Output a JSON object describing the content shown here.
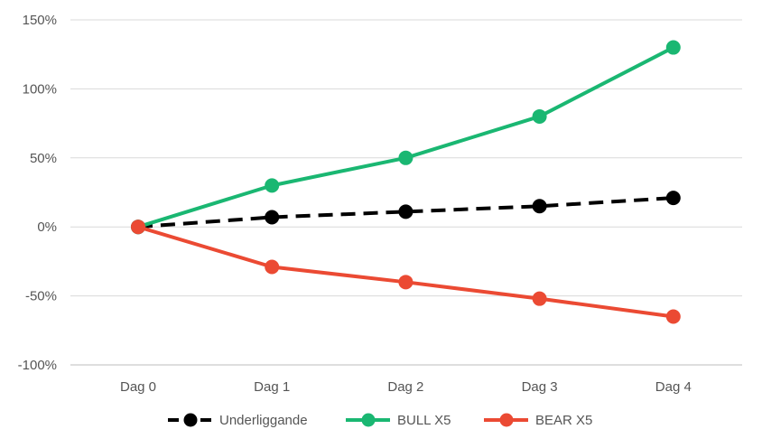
{
  "chart_data": {
    "type": "line",
    "title": "",
    "xlabel": "",
    "ylabel": "",
    "categories": [
      "Dag 0",
      "Dag 1",
      "Dag 2",
      "Dag 3",
      "Dag 4"
    ],
    "y_ticks": [
      "150%",
      "100%",
      "50%",
      "0%",
      "-50%",
      "-100%"
    ],
    "ylim": [
      -100,
      150
    ],
    "y_unit": "%",
    "grid": "horizontal",
    "legend_position": "bottom",
    "series": [
      {
        "name": "Underliggande",
        "values": [
          0,
          7,
          11,
          15,
          21
        ],
        "color": "#000000",
        "line_style": "dashed"
      },
      {
        "name": "BULL X5",
        "values": [
          0,
          30,
          50,
          80,
          130
        ],
        "color": "#1ab772",
        "line_style": "solid"
      },
      {
        "name": "BEAR X5",
        "values": [
          0,
          -29,
          -40,
          -52,
          -65
        ],
        "color": "#eb4a33",
        "line_style": "solid"
      }
    ]
  }
}
